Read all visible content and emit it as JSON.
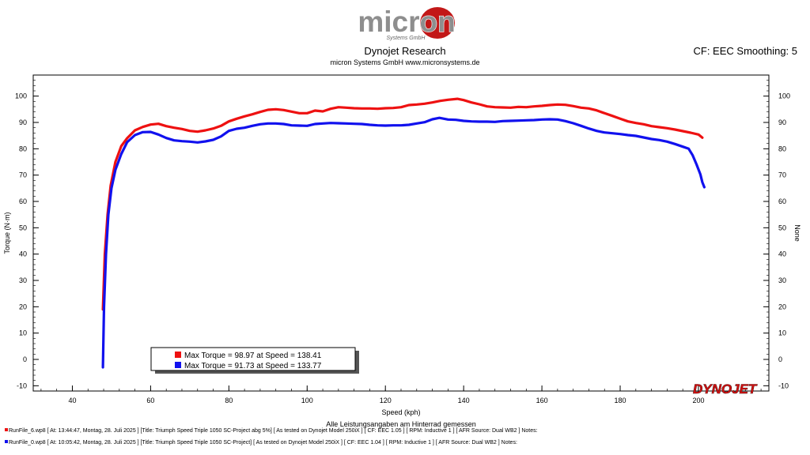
{
  "header": {
    "logo_text": "micron",
    "logo_subtext": "Systems GmbH",
    "title": "Dynojet Research",
    "subtitle": "micron Systems GmbH  www.micronsystems.de",
    "cf_label": "CF: EEC Smoothing: 5"
  },
  "brand_logo": "DYNOJET",
  "chart_data": {
    "type": "line",
    "xlabel": "Speed (kph)",
    "ylabel": "Torque (N·m)",
    "ylabel_right": "None",
    "x_note": "Alle Leistungsangaben am Hinterrad gemessen",
    "xlim": [
      30,
      218
    ],
    "ylim": [
      -12,
      108
    ],
    "x_ticks": [
      40,
      60,
      80,
      100,
      120,
      140,
      160,
      180,
      200
    ],
    "y_ticks": [
      -10,
      0,
      10,
      20,
      30,
      40,
      50,
      60,
      70,
      80,
      90,
      100
    ],
    "legend_position": "bottom-left",
    "series": [
      {
        "name": "Max Torque = 98.97 at Speed = 138.41",
        "color": "#ee1111",
        "x": [
          47.8,
          48.3,
          49,
          49.8,
          51,
          52.5,
          54,
          56,
          58,
          60,
          62,
          64,
          66,
          68,
          70,
          72,
          74,
          76,
          78,
          80,
          82,
          84,
          86,
          88,
          90,
          92,
          94,
          96,
          98,
          100,
          102,
          104,
          106,
          108,
          110,
          112,
          114,
          116,
          118,
          120,
          122,
          124,
          126,
          128,
          130,
          132,
          134,
          136,
          138.4,
          140,
          142,
          144,
          146,
          148,
          150,
          152,
          154,
          156,
          158,
          160,
          162,
          164,
          166,
          168,
          170,
          172,
          174,
          176,
          178,
          180,
          182,
          184,
          186,
          188,
          190,
          192,
          194,
          196,
          198,
          200,
          201
        ],
        "y": [
          19,
          40,
          55,
          66,
          75,
          81,
          84,
          87,
          88.3,
          89.2,
          89.5,
          88.6,
          88,
          87.5,
          86.8,
          86.5,
          87,
          87.7,
          88.7,
          90.4,
          91.4,
          92.3,
          93.1,
          94,
          94.8,
          95,
          94.7,
          94.1,
          93.5,
          93.5,
          94.5,
          94.2,
          95.2,
          95.8,
          95.6,
          95.4,
          95.3,
          95.3,
          95.2,
          95.4,
          95.5,
          95.8,
          96.6,
          96.8,
          97.1,
          97.6,
          98.2,
          98.6,
          98.97,
          98.5,
          97.6,
          96.9,
          96.1,
          95.8,
          95.7,
          95.6,
          95.9,
          95.8,
          96.1,
          96.3,
          96.6,
          96.8,
          96.7,
          96.2,
          95.6,
          95.3,
          94.6,
          93.5,
          92.5,
          91.4,
          90.4,
          89.8,
          89.3,
          88.6,
          88.2,
          87.8,
          87.3,
          86.7,
          86.1,
          85.4,
          84.2
        ]
      },
      {
        "name": "Max Torque = 91.73 at Speed = 133.77",
        "color": "#1111ee",
        "x": [
          47.8,
          48.1,
          48.6,
          49.2,
          50,
          51,
          52.5,
          54,
          56,
          58,
          60,
          62,
          64,
          66,
          68,
          70,
          72,
          74,
          76,
          78,
          80,
          82,
          84,
          86,
          88,
          90,
          92,
          94,
          96,
          98,
          100,
          102,
          104,
          106,
          108,
          110,
          112,
          114,
          116,
          118,
          120,
          122,
          124,
          126,
          128,
          130,
          132,
          133.8,
          136,
          138,
          140,
          142,
          144,
          146,
          148,
          150,
          152,
          154,
          156,
          158,
          160,
          162,
          164,
          166,
          168,
          170,
          172,
          174,
          176,
          178,
          180,
          182,
          184,
          186,
          188,
          190,
          192,
          194,
          196,
          197.5,
          198.5,
          199.5,
          200.5,
          201,
          201.5
        ],
        "y": [
          -3,
          20,
          40,
          55,
          65,
          72,
          78,
          82.5,
          85.2,
          86.3,
          86.4,
          85.4,
          84.1,
          83.2,
          82.9,
          82.7,
          82.4,
          82.8,
          83.4,
          84.7,
          86.8,
          87.6,
          88,
          88.7,
          89.3,
          89.6,
          89.6,
          89.4,
          88.9,
          88.8,
          88.7,
          89.4,
          89.6,
          89.8,
          89.7,
          89.6,
          89.5,
          89.4,
          89.1,
          88.9,
          88.8,
          88.9,
          88.9,
          89.1,
          89.6,
          90.1,
          91.2,
          91.73,
          91.1,
          91,
          90.6,
          90.4,
          90.3,
          90.3,
          90.2,
          90.5,
          90.6,
          90.7,
          90.8,
          90.9,
          91.1,
          91.2,
          91.1,
          90.5,
          89.7,
          88.7,
          87.7,
          86.8,
          86.2,
          85.9,
          85.6,
          85.2,
          84.9,
          84.3,
          83.7,
          83.3,
          82.7,
          81.8,
          80.8,
          80,
          77.6,
          74.1,
          70.3,
          67.3,
          65.4
        ]
      }
    ]
  },
  "run_files": [
    {
      "color": "#ee1111",
      "text": "RunFile_6.wp8  [ At:  13:44:47, Montag, 28. Juli 2025 ] [Title: Triumph Speed Triple 1050 SC-Project abg 5%]  [ As tested on Dynojet Model 250iX ] [ CF: EEC 1.05 ] [ RPM: Inductive 1 ] [ AFR Source: Dual WB2 ] Notes:"
    },
    {
      "color": "#1111ee",
      "text": "RunFile_0.wp8  [ At:  10:05:42, Montag, 28. Juli 2025 ] [Title: Triumph Speed Triple 1050 SC-Project]  [ As tested on Dynojet Model 250iX ] [ CF: EEC 1.04 ] [ RPM: Inductive 1 ] [ AFR Source: Dual WB2 ] Notes:"
    }
  ]
}
